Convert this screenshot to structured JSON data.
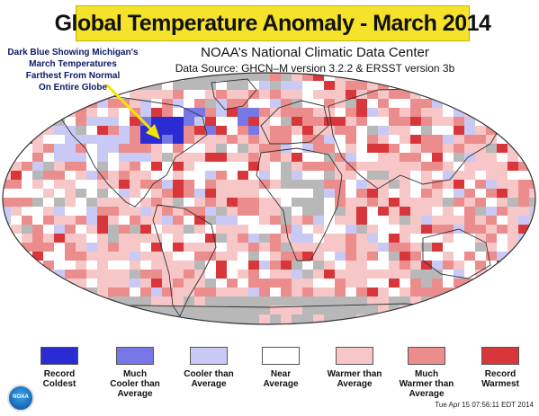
{
  "header": {
    "title": "Global Temperature Anomaly - March 2014",
    "subtitle": "NOAA’s National Climatic Data Center",
    "source": "Data Source: GHCN–M version 3.2.2 & ERSST version 3b"
  },
  "callout": {
    "lines": [
      "Dark Blue Showing Michigan's",
      "March Temperatures",
      "Farthest From Normal",
      "On Entire Globe"
    ],
    "arrow_color": "#f2e600"
  },
  "legend": [
    {
      "line1": "Record",
      "line2": "Coldest",
      "line3": "",
      "color": "#2b2bd4"
    },
    {
      "line1": "Much",
      "line2": "Cooler than",
      "line3": "Average",
      "color": "#7777e6"
    },
    {
      "line1": "Cooler than",
      "line2": "Average",
      "line3": "",
      "color": "#c9c9f5"
    },
    {
      "line1": "Near",
      "line2": "Average",
      "line3": "",
      "color": "#ffffff"
    },
    {
      "line1": "Warmer than",
      "line2": "Average",
      "line3": "",
      "color": "#f7c6c6"
    },
    {
      "line1": "Much",
      "line2": "Warmer than",
      "line3": "Average",
      "color": "#ec8d8d"
    },
    {
      "line1": "Record",
      "line2": "Warmest",
      "line3": "",
      "color": "#d8363a"
    }
  ],
  "colors": {
    "no_data": "#b8b8b8",
    "banner": "#f5e22a"
  },
  "logo": {
    "text": "NOAA"
  },
  "timestamp": "Tue Apr 15 07:56:11 EDT 2014"
}
